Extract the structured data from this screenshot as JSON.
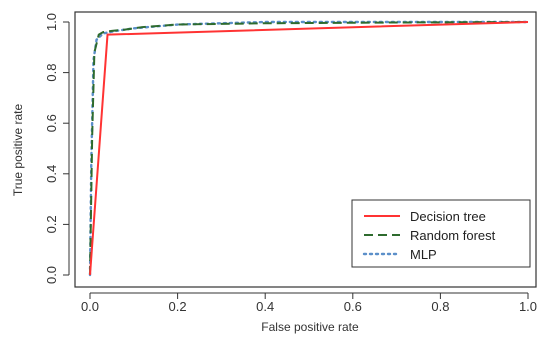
{
  "chart_data": {
    "type": "line",
    "xlabel": "False positive rate",
    "ylabel": "True positive rate",
    "xlim": [
      0,
      1
    ],
    "ylim": [
      0,
      1
    ],
    "x_ticks": [
      "0.0",
      "0.2",
      "0.4",
      "0.6",
      "0.8",
      "1.0"
    ],
    "y_ticks": [
      "0.0",
      "0.2",
      "0.4",
      "0.6",
      "0.8",
      "1.0"
    ],
    "grid": false,
    "legend_position": "bottom-right",
    "series": [
      {
        "name": "Decision tree",
        "color": "#ff3333",
        "style": "solid",
        "x": [
          0.0,
          0.04,
          1.0
        ],
        "y": [
          0.0,
          0.95,
          1.0
        ]
      },
      {
        "name": "Random forest",
        "color": "#2e6b2e",
        "style": "dashed",
        "x": [
          0.0,
          0.005,
          0.01,
          0.02,
          0.03,
          0.05,
          0.08,
          0.12,
          0.2,
          0.4,
          0.7,
          1.0
        ],
        "y": [
          0.0,
          0.55,
          0.88,
          0.95,
          0.96,
          0.965,
          0.97,
          0.98,
          0.99,
          0.995,
          0.998,
          1.0
        ]
      },
      {
        "name": "MLP",
        "color": "#5b8fc9",
        "style": "dotted",
        "x": [
          0.0,
          0.003,
          0.008,
          0.015,
          0.03,
          0.06,
          0.1,
          0.2,
          0.4,
          0.7,
          1.0
        ],
        "y": [
          0.0,
          0.45,
          0.85,
          0.93,
          0.955,
          0.965,
          0.975,
          0.99,
          1.0,
          1.0,
          1.0
        ]
      }
    ]
  }
}
